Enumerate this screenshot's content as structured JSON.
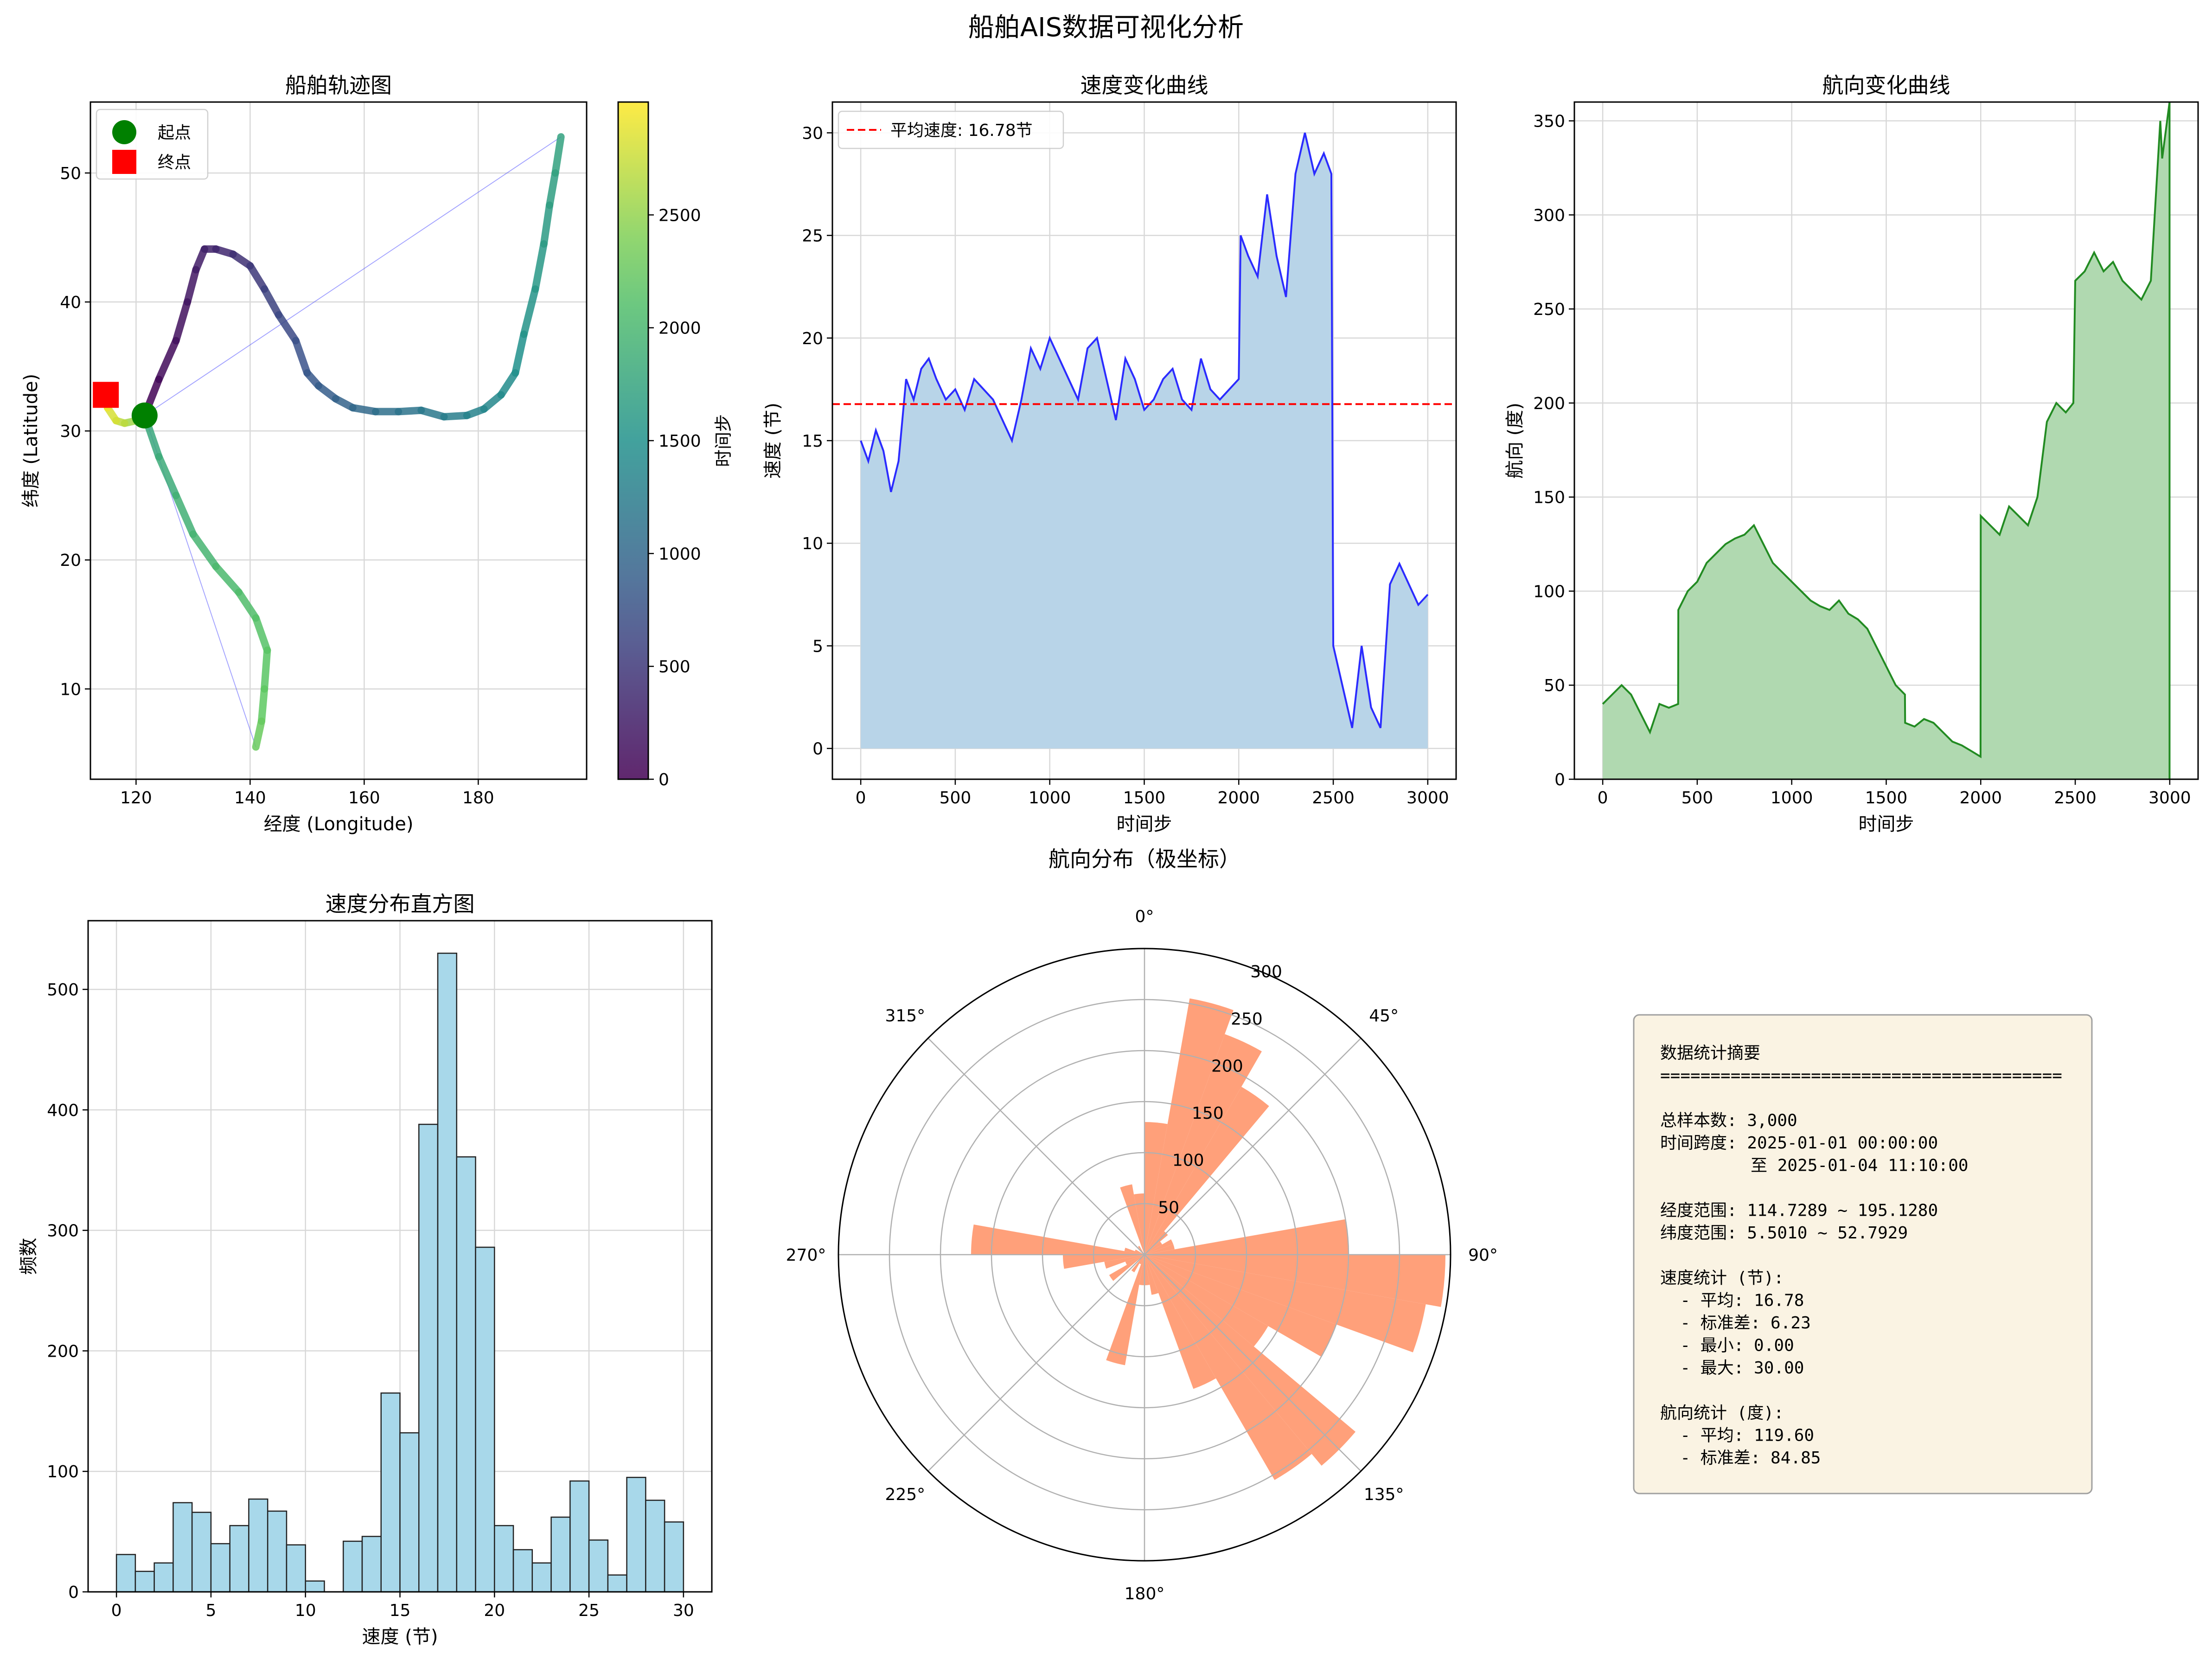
{
  "figure": {
    "title": "船舶AIS数据可视化分析"
  },
  "colors": {
    "speed_line": "#2b2bff",
    "speed_fill": "#b8d4e8",
    "mean_line": "#ff0000",
    "heading_line": "#228b22",
    "heading_fill": "#b0d9b0",
    "hist_bar": "#a8d8ea",
    "polar_bar": "#ffa07a",
    "start_marker": "#008000",
    "end_marker": "#ff0000",
    "stats_box": "#faf3e3"
  },
  "chart_data": [
    {
      "id": "trajectory",
      "type": "scatter",
      "title": "船舶轨迹图",
      "xlabel": "经度 (Longitude)",
      "ylabel": "纬度 (Latitude)",
      "xlim": [
        112,
        199
      ],
      "ylim": [
        3,
        55.5
      ],
      "xticks": [
        120,
        140,
        160,
        180
      ],
      "yticks": [
        10,
        20,
        30,
        40,
        50
      ],
      "grid": true,
      "colormap": "viridis",
      "colorbar": {
        "label": "时间步",
        "range": [
          0,
          3000
        ],
        "ticks": [
          0,
          500,
          1000,
          1500,
          2000,
          2500
        ]
      },
      "legend": {
        "placement": "top-left",
        "entries": [
          "起点",
          "终点"
        ]
      },
      "start": [
        121.5,
        31.2
      ],
      "end": [
        114.7,
        32.8
      ],
      "path": [
        [
          121.5,
          31.2,
          0
        ],
        [
          124,
          34,
          60
        ],
        [
          127,
          37,
          120
        ],
        [
          129,
          40,
          180
        ],
        [
          130.5,
          42.5,
          230
        ],
        [
          132,
          44.1,
          280
        ],
        [
          134,
          44.1,
          330
        ],
        [
          137,
          43.7,
          400
        ],
        [
          140,
          42.8,
          480
        ],
        [
          142.5,
          41,
          560
        ],
        [
          145,
          39,
          640
        ],
        [
          148,
          37,
          720
        ],
        [
          150,
          34.5,
          800
        ],
        [
          152,
          33.5,
          860
        ],
        [
          155,
          32.5,
          920
        ],
        [
          158,
          31.8,
          980
        ],
        [
          162,
          31.5,
          1060
        ],
        [
          166,
          31.5,
          1120
        ],
        [
          170,
          31.6,
          1180
        ],
        [
          174,
          31.1,
          1240
        ],
        [
          178,
          31.2,
          1300
        ],
        [
          181,
          31.7,
          1360
        ],
        [
          184,
          32.8,
          1420
        ],
        [
          186.5,
          34.5,
          1470
        ],
        [
          188,
          37.5,
          1520
        ],
        [
          190,
          41,
          1570
        ],
        [
          191.5,
          44.5,
          1620
        ],
        [
          192.5,
          47.5,
          1660
        ],
        [
          193.5,
          50,
          1700
        ],
        [
          194.5,
          52.8,
          1750
        ],
        [
          121.5,
          31.2,
          1760
        ],
        [
          124,
          28,
          1820
        ],
        [
          127,
          25,
          1880
        ],
        [
          130,
          22,
          1940
        ],
        [
          134,
          19.5,
          2000
        ],
        [
          138,
          17.5,
          2060
        ],
        [
          141,
          15.5,
          2120
        ],
        [
          143,
          13,
          2180
        ],
        [
          142.5,
          10,
          2230
        ],
        [
          142,
          7.5,
          2280
        ],
        [
          141,
          5.5,
          2320
        ],
        [
          121.5,
          31.2,
          2330
        ],
        [
          120,
          30.8,
          2500
        ],
        [
          118,
          30.6,
          2650
        ],
        [
          116.5,
          30.8,
          2760
        ],
        [
          115,
          31.8,
          2880
        ],
        [
          114.7,
          32.8,
          3000
        ]
      ],
      "jump_lines": [
        [
          [
            194.5,
            52.8
          ],
          [
            121.5,
            31.2
          ]
        ],
        [
          [
            141,
            5.5
          ],
          [
            121.5,
            31.2
          ]
        ]
      ]
    },
    {
      "id": "speed",
      "type": "area",
      "title": "速度变化曲线",
      "xlabel": "时间步",
      "ylabel": "速度 (节)",
      "xlim": [
        -150,
        3150
      ],
      "ylim": [
        -1.5,
        31.5
      ],
      "xticks": [
        0,
        500,
        1000,
        1500,
        2000,
        2500,
        3000
      ],
      "yticks": [
        0,
        5,
        10,
        15,
        20,
        25,
        30
      ],
      "grid": true,
      "legend": {
        "placement": "top-left",
        "entries": [
          "平均速度: 16.78节"
        ]
      },
      "mean": 16.78,
      "x": [
        0,
        40,
        80,
        120,
        160,
        200,
        240,
        280,
        320,
        360,
        400,
        450,
        500,
        550,
        600,
        650,
        700,
        750,
        800,
        850,
        900,
        950,
        1000,
        1050,
        1100,
        1150,
        1200,
        1250,
        1300,
        1350,
        1400,
        1450,
        1500,
        1550,
        1600,
        1650,
        1700,
        1750,
        1800,
        1850,
        1900,
        1950,
        2000,
        2010,
        2050,
        2100,
        2150,
        2200,
        2250,
        2300,
        2350,
        2400,
        2450,
        2490,
        2500,
        2550,
        2600,
        2650,
        2700,
        2750,
        2800,
        2850,
        2900,
        2950,
        3000
      ],
      "y": [
        15,
        14,
        15.5,
        14.5,
        12.5,
        14,
        18,
        17,
        18.5,
        19,
        18,
        17,
        17.5,
        16.5,
        18,
        17.5,
        17,
        16,
        15,
        17,
        19.5,
        18.5,
        20,
        19,
        18,
        17,
        19.5,
        20,
        18,
        16,
        19,
        18,
        16.5,
        17,
        18,
        18.5,
        17,
        16.5,
        19,
        17.5,
        17,
        17.5,
        18,
        25,
        24,
        23,
        27,
        24,
        22,
        28,
        30,
        28,
        29,
        28,
        5,
        3,
        1,
        5,
        2,
        1,
        8,
        9,
        8,
        7,
        7.5
      ]
    },
    {
      "id": "heading",
      "type": "area",
      "title": "航向变化曲线",
      "xlabel": "时间步",
      "ylabel": "航向 (度)",
      "xlim": [
        -150,
        3150
      ],
      "ylim": [
        0,
        360
      ],
      "xticks": [
        0,
        500,
        1000,
        1500,
        2000,
        2500,
        3000
      ],
      "yticks": [
        0,
        50,
        100,
        150,
        200,
        250,
        300,
        350
      ],
      "grid": true,
      "x": [
        0,
        50,
        100,
        150,
        200,
        250,
        300,
        350,
        399,
        400,
        450,
        500,
        550,
        600,
        650,
        700,
        750,
        800,
        850,
        900,
        950,
        1000,
        1050,
        1100,
        1150,
        1200,
        1250,
        1300,
        1350,
        1400,
        1450,
        1500,
        1550,
        1599,
        1600,
        1650,
        1700,
        1750,
        1800,
        1850,
        1900,
        1950,
        1999,
        2000,
        2050,
        2100,
        2150,
        2200,
        2250,
        2300,
        2350,
        2400,
        2450,
        2490,
        2500,
        2550,
        2600,
        2650,
        2700,
        2750,
        2800,
        2850,
        2900,
        2950,
        2960,
        2999
      ],
      "y": [
        40,
        45,
        50,
        45,
        35,
        25,
        40,
        38,
        40,
        90,
        100,
        105,
        115,
        120,
        125,
        128,
        130,
        135,
        125,
        115,
        110,
        105,
        100,
        95,
        92,
        90,
        95,
        88,
        85,
        80,
        70,
        60,
        50,
        45,
        30,
        28,
        32,
        30,
        25,
        20,
        18,
        15,
        12,
        140,
        135,
        130,
        145,
        140,
        135,
        150,
        190,
        200,
        195,
        200,
        265,
        270,
        280,
        270,
        275,
        265,
        260,
        255,
        265,
        350,
        330,
        360
      ]
    },
    {
      "id": "speed_hist",
      "type": "bar",
      "title": "速度分布直方图",
      "xlabel": "速度 (节)",
      "ylabel": "频数",
      "xlim": [
        -1.5,
        31.5
      ],
      "ylim": [
        0,
        557
      ],
      "xticks": [
        0,
        5,
        10,
        15,
        20,
        25,
        30
      ],
      "yticks": [
        0,
        100,
        200,
        300,
        400,
        500
      ],
      "grid": true,
      "bin_edges": [
        0,
        1,
        2,
        3,
        4,
        5,
        6,
        7,
        8,
        9,
        10,
        11,
        12,
        13,
        14,
        15,
        16,
        17,
        18,
        19,
        20,
        21,
        22,
        23,
        24,
        25,
        26,
        27,
        28,
        29,
        30
      ],
      "values": [
        31,
        17,
        24,
        74,
        66,
        40,
        55,
        77,
        67,
        39,
        9,
        0,
        42,
        46,
        165,
        132,
        388,
        530,
        361,
        286,
        55,
        35,
        24,
        62,
        92,
        43,
        14,
        95,
        76,
        58
      ]
    },
    {
      "id": "heading_polar",
      "type": "bar",
      "title": "航向分布（极坐标）",
      "r_max": 300,
      "r_ticks": [
        50,
        100,
        150,
        200,
        250,
        300
      ],
      "theta_ticks": [
        "0°",
        "45°",
        "90°",
        "135°",
        "180°",
        "225°",
        "270°",
        "315°"
      ],
      "bin_width_deg": 10,
      "bin_starts_deg": [
        0,
        10,
        20,
        30,
        40,
        50,
        60,
        70,
        80,
        90,
        100,
        110,
        120,
        130,
        140,
        150,
        160,
        170,
        180,
        190,
        200,
        210,
        220,
        230,
        240,
        250,
        260,
        270,
        280,
        290,
        300,
        310,
        320,
        330,
        340,
        350
      ],
      "values": [
        130,
        255,
        230,
        190,
        30,
        20,
        30,
        30,
        200,
        295,
        280,
        200,
        140,
        270,
        255,
        140,
        40,
        30,
        30,
        110,
        10,
        20,
        0,
        40,
        20,
        40,
        80,
        170,
        20,
        10,
        0,
        0,
        10,
        0,
        70,
        60
      ]
    }
  ],
  "stats": {
    "lines": [
      "数据统计摘要",
      "========================================",
      "",
      "总样本数: 3,000",
      "时间跨度: 2025-01-01 00:00:00",
      "         至 2025-01-04 11:10:00",
      "",
      "经度范围: 114.7289 ~ 195.1280",
      "纬度范围: 5.5010 ~ 52.7929",
      "",
      "速度统计 (节):",
      "  - 平均: 16.78",
      "  - 标准差: 6.23",
      "  - 最小: 0.00",
      "  - 最大: 30.00",
      "",
      "航向统计 (度):",
      "  - 平均: 119.60",
      "  - 标准差: 84.85"
    ]
  }
}
